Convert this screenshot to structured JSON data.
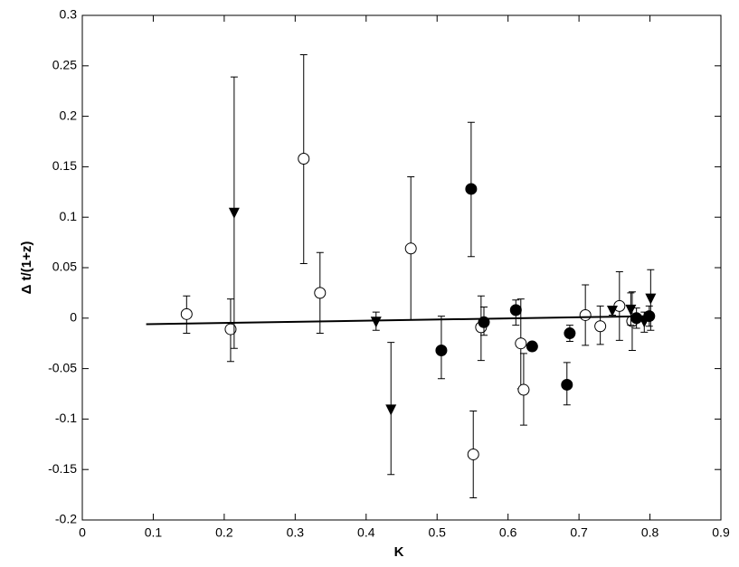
{
  "chart_data": {
    "type": "scatter",
    "x_label": "K",
    "y_label": "Δ t/(1+z)",
    "xlim": [
      0,
      0.9
    ],
    "ylim": [
      -0.2,
      0.3
    ],
    "xticks": [
      0,
      0.1,
      0.2,
      0.3,
      0.4,
      0.5,
      0.6,
      0.7,
      0.8,
      0.9
    ],
    "yticks": [
      -0.2,
      -0.15,
      -0.1,
      -0.05,
      0,
      0.05,
      0.1,
      0.15,
      0.2,
      0.25,
      0.3
    ],
    "grid": false,
    "series": [
      {
        "marker": "open-circle",
        "color": "#000000",
        "x": [
          0.147,
          0.209,
          0.312,
          0.335,
          0.463,
          0.551,
          0.562,
          0.618,
          0.622,
          0.709,
          0.73,
          0.757,
          0.775
        ],
        "values": [
          0.004,
          -0.011,
          0.158,
          0.025,
          0.069,
          -0.135,
          -0.009,
          -0.025,
          -0.071,
          0.003,
          -0.008,
          0.012,
          -0.003
        ],
        "err_high": [
          0.018,
          0.03,
          0.103,
          0.04,
          0.071,
          0.043,
          0.031,
          0.044,
          0.036,
          0.03,
          0.02,
          0.034,
          0.029
        ],
        "err_low": [
          0.019,
          0.032,
          0.104,
          0.04,
          0.071,
          0.043,
          0.033,
          0.045,
          0.035,
          0.03,
          0.018,
          0.034,
          0.029
        ]
      },
      {
        "marker": "filled-circle",
        "color": "#000000",
        "x": [
          0.548,
          0.506,
          0.566,
          0.611,
          0.634,
          0.687,
          0.683,
          0.799,
          0.781
        ],
        "values": [
          0.128,
          -0.032,
          -0.004,
          0.008,
          -0.028,
          -0.015,
          -0.066,
          0.002,
          0.0
        ],
        "err_high": [
          0.066,
          0.034,
          0.015,
          0.01,
          0.004,
          0.008,
          0.022,
          0.01,
          0.01
        ],
        "err_low": [
          0.067,
          0.028,
          0.013,
          0.015,
          0.004,
          0.008,
          0.02,
          0.01,
          0.01
        ]
      },
      {
        "marker": "triangle-down",
        "color": "#000000",
        "x": [
          0.214,
          0.414,
          0.435,
          0.747,
          0.773,
          0.801,
          0.792
        ],
        "values": [
          0.104,
          -0.004,
          -0.091,
          0.007,
          0.008,
          0.019,
          -0.004
        ],
        "err_high": [
          0.135,
          0.01,
          0.067,
          0.004,
          0.017,
          0.029,
          0.01
        ],
        "err_low": [
          0.134,
          0.008,
          0.064,
          0.004,
          0.015,
          0.031,
          0.01
        ]
      },
      {
        "marker": "line",
        "color": "#000000",
        "x": [
          0.09,
          0.8
        ],
        "values": [
          -0.006,
          0.002
        ]
      }
    ]
  }
}
